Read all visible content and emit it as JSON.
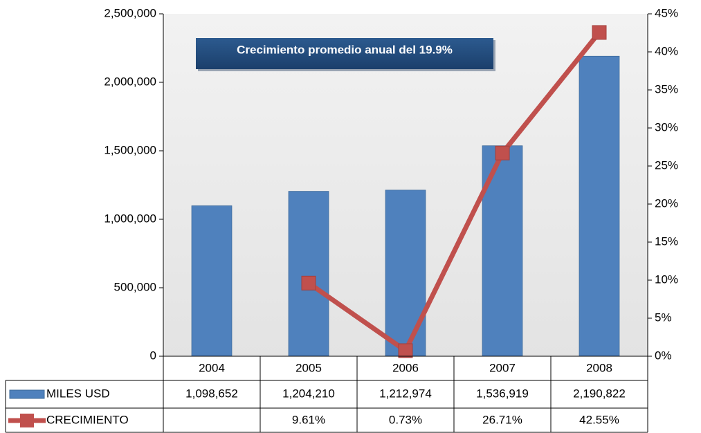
{
  "chart_data": {
    "type": "bar",
    "annotation": "Crecimiento promedio anual del 19.9%",
    "categories": [
      "2004",
      "2005",
      "2006",
      "2007",
      "2008"
    ],
    "series": [
      {
        "name": "MILES USD",
        "color": "#4f81bd",
        "values": [
          1098652,
          1204210,
          1212974,
          1536919,
          2190822
        ],
        "value_labels": [
          "1,098,652",
          "1,204,210",
          "1,212,974",
          "1,536,919",
          "2,190,822"
        ]
      },
      {
        "name": "CRECIMIENTO",
        "color": "#c0504d",
        "axis": "y2",
        "values": [
          null,
          9.61,
          0.73,
          26.71,
          42.55
        ],
        "value_labels": [
          null,
          "9.61%",
          "0.73%",
          "26.71%",
          "42.55%"
        ]
      }
    ],
    "ylim": [
      0,
      2500000
    ],
    "yticks": [
      0,
      {
        "value": 500000,
        "label": "500,000"
      },
      {
        "value": 1000000,
        "label": "1,000,000"
      },
      {
        "value": 1500000,
        "label": "1,500,000"
      },
      {
        "value": 2000000,
        "label": "2,000,000"
      },
      {
        "value": 2500000,
        "label": "2,500,000"
      }
    ],
    "y2lim": [
      0,
      45
    ],
    "y2ticks": [
      {
        "value": 0,
        "label": "0%"
      },
      {
        "value": 5,
        "label": "5%"
      },
      {
        "value": 10,
        "label": "10%"
      },
      {
        "value": 15,
        "label": "15%"
      },
      {
        "value": 20,
        "label": "20%"
      },
      {
        "value": 25,
        "label": "25%"
      },
      {
        "value": 30,
        "label": "30%"
      },
      {
        "value": 35,
        "label": "35%"
      },
      {
        "value": 40,
        "label": "40%"
      },
      {
        "value": 45,
        "label": "45%"
      }
    ],
    "data_table": true
  }
}
